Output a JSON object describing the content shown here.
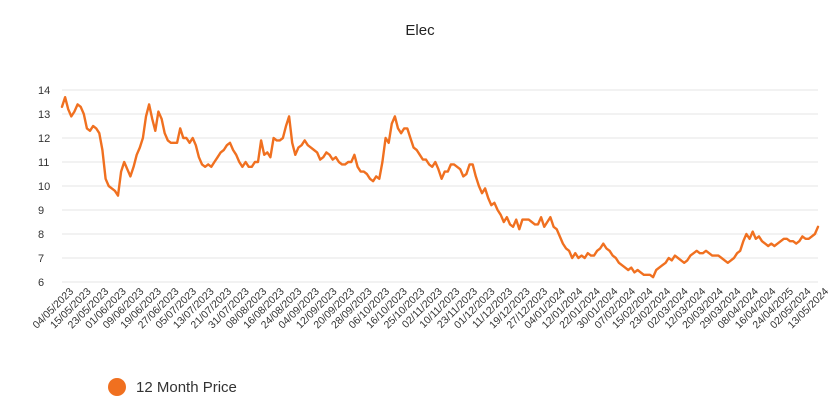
{
  "chart_data": {
    "type": "line",
    "title": "Elec",
    "xlabel": "",
    "ylabel": "",
    "ylim": [
      6,
      14
    ],
    "yticks": [
      6,
      7,
      8,
      9,
      10,
      11,
      12,
      13,
      14
    ],
    "grid": "horizontal",
    "legend_position": "bottom-left",
    "x_tick_labels": [
      "04/05/2023",
      "15/05/2023",
      "23/05/2023",
      "01/06/2023",
      "09/06/2023",
      "19/06/2023",
      "27/06/2023",
      "05/07/2023",
      "13/07/2023",
      "21/07/2023",
      "31/07/2023",
      "08/08/2023",
      "16/08/2023",
      "24/08/2023",
      "04/09/2023",
      "12/09/2023",
      "20/09/2023",
      "28/09/2023",
      "06/10/2023",
      "16/10/2023",
      "25/10/2023",
      "02/11/2023",
      "10/11/2023",
      "23/11/2023",
      "01/12/2023",
      "11/12/2023",
      "19/12/2023",
      "27/12/2023",
      "04/01/2024",
      "12/01/2024",
      "22/01/2024",
      "30/01/2024",
      "07/02/2024",
      "15/02/2024",
      "23/02/2024",
      "02/03/2024",
      "12/03/2024",
      "20/03/2024",
      "29/03/2024",
      "08/04/2024",
      "16/04/2024",
      "24/04/2025",
      "02/05/2024",
      "13/05/2024"
    ],
    "series": [
      {
        "name": "12 Month Price",
        "color": "#f07020",
        "values": [
          13.3,
          13.7,
          13.2,
          12.9,
          13.1,
          13.4,
          13.3,
          13.0,
          12.4,
          12.3,
          12.5,
          12.4,
          12.2,
          11.5,
          10.3,
          10.0,
          9.9,
          9.8,
          9.6,
          10.6,
          11.0,
          10.7,
          10.4,
          10.8,
          11.3,
          11.6,
          12.0,
          12.9,
          13.4,
          12.8,
          12.3,
          13.1,
          12.8,
          12.2,
          11.9,
          11.8,
          11.8,
          11.8,
          12.4,
          12.0,
          12.0,
          11.8,
          12.0,
          11.7,
          11.2,
          10.9,
          10.8,
          10.9,
          10.8,
          11.0,
          11.2,
          11.4,
          11.5,
          11.7,
          11.8,
          11.5,
          11.3,
          11.0,
          10.8,
          11.0,
          10.8,
          10.8,
          11.0,
          11.0,
          11.9,
          11.3,
          11.4,
          11.2,
          12.0,
          11.9,
          11.9,
          12.0,
          12.5,
          12.9,
          11.8,
          11.3,
          11.6,
          11.7,
          11.9,
          11.7,
          11.6,
          11.5,
          11.4,
          11.1,
          11.2,
          11.4,
          11.3,
          11.1,
          11.2,
          11.0,
          10.9,
          10.9,
          11.0,
          11.0,
          11.3,
          10.8,
          10.6,
          10.6,
          10.5,
          10.3,
          10.2,
          10.4,
          10.3,
          11.0,
          12.0,
          11.8,
          12.6,
          12.9,
          12.4,
          12.2,
          12.4,
          12.4,
          12.0,
          11.6,
          11.5,
          11.3,
          11.1,
          11.1,
          10.9,
          10.8,
          11.0,
          10.7,
          10.3,
          10.6,
          10.6,
          10.9,
          10.9,
          10.8,
          10.7,
          10.4,
          10.5,
          10.9,
          10.9,
          10.4,
          10.0,
          9.7,
          9.9,
          9.5,
          9.2,
          9.3,
          9.0,
          8.8,
          8.5,
          8.7,
          8.4,
          8.3,
          8.6,
          8.2,
          8.6,
          8.6,
          8.6,
          8.5,
          8.4,
          8.4,
          8.7,
          8.3,
          8.5,
          8.7,
          8.3,
          8.2,
          7.9,
          7.6,
          7.4,
          7.3,
          7.0,
          7.2,
          7.0,
          7.1,
          7.0,
          7.2,
          7.1,
          7.1,
          7.3,
          7.4,
          7.6,
          7.4,
          7.3,
          7.1,
          7.0,
          6.8,
          6.7,
          6.6,
          6.5,
          6.6,
          6.4,
          6.5,
          6.4,
          6.3,
          6.3,
          6.3,
          6.2,
          6.5,
          6.6,
          6.7,
          6.8,
          7.0,
          6.9,
          7.1,
          7.0,
          6.9,
          6.8,
          6.9,
          7.1,
          7.2,
          7.3,
          7.2,
          7.2,
          7.3,
          7.2,
          7.1,
          7.1,
          7.1,
          7.0,
          6.9,
          6.8,
          6.9,
          7.0,
          7.2,
          7.3,
          7.7,
          8.0,
          7.8,
          8.1,
          7.8,
          7.9,
          7.7,
          7.6,
          7.5,
          7.6,
          7.5,
          7.6,
          7.7,
          7.8,
          7.8,
          7.7,
          7.7,
          7.6,
          7.7,
          7.9,
          7.8,
          7.8,
          7.9,
          8.0,
          8.3
        ]
      }
    ]
  },
  "legend": {
    "label": "12 Month Price",
    "color": "#f07020"
  }
}
